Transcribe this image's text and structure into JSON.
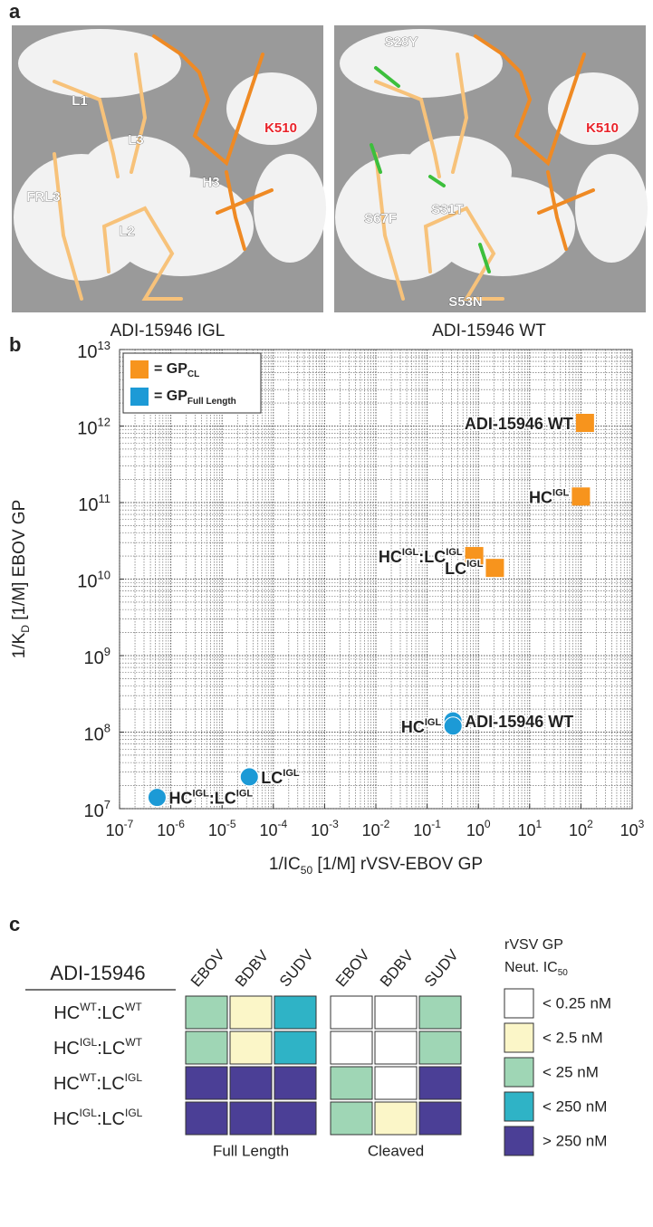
{
  "panel_letters": [
    "a",
    "b",
    "c"
  ],
  "panel_a": {
    "images": [
      {
        "caption": "ADI-15946 IGL",
        "labels": [
          "L1",
          "L3",
          "H3",
          "K510",
          "FRL3",
          "L2"
        ]
      },
      {
        "caption": "ADI-15946 WT",
        "labels": [
          "S28Y",
          "K510",
          "S67F",
          "S31T",
          "S53N"
        ]
      }
    ]
  },
  "chart_data": {
    "type": "scatter",
    "x_label": [
      "1/IC",
      "50",
      " [1/M] rVSV-EBOV GP"
    ],
    "y_label": [
      "1/K",
      "D",
      " [1/M] EBOV GP"
    ],
    "xlim": [
      1e-07,
      1000
    ],
    "ylim": [
      10000000,
      10000000000000
    ],
    "log_x": true,
    "log_y": true,
    "grid": true,
    "legend": "upper left",
    "xticks": [
      {
        "value": 1e-07,
        "label": "10",
        "exponent": "-7"
      },
      {
        "value": 1e-06,
        "label": "10",
        "exponent": "-6"
      },
      {
        "value": 1e-05,
        "label": "10",
        "exponent": "-5"
      },
      {
        "value": 0.0001,
        "label": "10",
        "exponent": "-4"
      },
      {
        "value": 0.001,
        "label": "10",
        "exponent": "-3"
      },
      {
        "value": 0.01,
        "label": "10",
        "exponent": "-2"
      },
      {
        "value": 0.1,
        "label": "10",
        "exponent": "-1"
      },
      {
        "value": 1,
        "label": "10",
        "exponent": "0"
      },
      {
        "value": 10,
        "label": "10",
        "exponent": "1"
      },
      {
        "value": 100,
        "label": "10",
        "exponent": "2"
      },
      {
        "value": 1000,
        "label": "10",
        "exponent": "3"
      }
    ],
    "yticks": [
      {
        "value": 10000000,
        "label": "10",
        "exponent": "7"
      },
      {
        "value": 100000000,
        "label": "10",
        "exponent": "8"
      },
      {
        "value": 1000000000,
        "label": "10",
        "exponent": "9"
      },
      {
        "value": 10000000000,
        "label": "10",
        "exponent": "10"
      },
      {
        "value": 100000000000,
        "label": "10",
        "exponent": "11"
      },
      {
        "value": 1000000000000,
        "label": "10",
        "exponent": "12"
      },
      {
        "value": 10000000000000,
        "label": "10",
        "exponent": "13"
      }
    ],
    "series": [
      {
        "name": [
          "= GP",
          "CL"
        ],
        "color": "#f7941d",
        "marker": "square",
        "x": [
          120,
          100,
          0.83,
          2.1
        ],
        "values": [
          1100000000000,
          120000000000,
          20000000000,
          14000000000
        ],
        "point_labels": [
          [
            "ADI-15946 WT"
          ],
          [
            "HC",
            "IGL"
          ],
          [
            "HC",
            "IGL",
            ":LC",
            "IGL"
          ],
          [
            "LC",
            "IGL"
          ]
        ]
      },
      {
        "name": [
          "= GP",
          "Full Length"
        ],
        "color": "#1c9ad6",
        "marker": "circle",
        "x": [
          0.32,
          0.32,
          3.4e-05,
          5.4e-07
        ],
        "values": [
          140000000,
          120000000,
          26000000,
          14000000
        ],
        "point_labels": [
          [
            "ADI-15946 WT"
          ],
          [
            "HC",
            "IGL"
          ],
          [
            "LC",
            "IGL"
          ],
          [
            "HC",
            "IGL",
            ":LC",
            "IGL"
          ]
        ]
      }
    ]
  },
  "panel_c": {
    "header": "ADI-15946",
    "rows": [
      [
        "HC",
        "WT",
        ":LC",
        "WT"
      ],
      [
        "HC",
        "IGL",
        ":LC",
        "WT"
      ],
      [
        "HC",
        "WT",
        ":LC",
        "IGL"
      ],
      [
        "HC",
        "IGL",
        ":LC",
        "IGL"
      ]
    ],
    "groups": [
      {
        "name": "Full Length",
        "columns": [
          "EBOV",
          "BDBV",
          "SUDV"
        ],
        "cells": [
          [
            2,
            1,
            3
          ],
          [
            2,
            1,
            3
          ],
          [
            4,
            4,
            4
          ],
          [
            4,
            4,
            4
          ]
        ]
      },
      {
        "name": "Cleaved",
        "columns": [
          "EBOV",
          "BDBV",
          "SUDV"
        ],
        "cells": [
          [
            0,
            0,
            2
          ],
          [
            0,
            0,
            2
          ],
          [
            2,
            0,
            4
          ],
          [
            2,
            1,
            4
          ]
        ]
      }
    ],
    "legend": {
      "title": "rVSV GP",
      "subtitle": [
        "Neut. IC",
        "50"
      ],
      "entries": [
        {
          "label": "< 0.25 nM",
          "color": "#ffffff"
        },
        {
          "label": "< 2.5 nM",
          "color": "#fbf6c8"
        },
        {
          "label": "< 25 nM",
          "color": "#9fd6b5"
        },
        {
          "label": "< 250 nM",
          "color": "#2fb3c6"
        },
        {
          "label": "> 250 nM",
          "color": "#4b3f96"
        }
      ]
    }
  }
}
